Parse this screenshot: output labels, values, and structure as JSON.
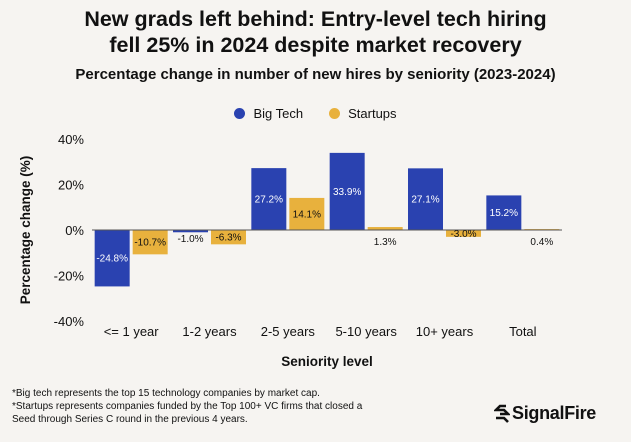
{
  "title_line1": "New grads left behind: Entry-level tech hiring",
  "title_line2": "fell 25% in 2024 despite market recovery",
  "chart_data": {
    "type": "bar",
    "title": "Percentage change in number of new hires by seniority (2023-2024)",
    "xlabel": "Seniority level",
    "ylabel": "Percentage change (%)",
    "ylim": [
      -40,
      40
    ],
    "yticks": [
      40,
      20,
      0,
      -20,
      -40
    ],
    "ytick_labels": [
      "40%",
      "20%",
      "0%",
      "-20%",
      "-40%"
    ],
    "categories": [
      "<= 1 year",
      "1-2 years",
      "2-5 years",
      "5-10 years",
      "10+ years",
      "Total"
    ],
    "series": [
      {
        "name": "Big Tech",
        "color": "#2a42b0",
        "values": [
          -24.8,
          -1.0,
          27.2,
          33.9,
          27.1,
          15.2
        ],
        "labels": [
          "-24.8%",
          "-1.0%",
          "27.2%",
          "33.9%",
          "27.1%",
          "15.2%"
        ]
      },
      {
        "name": "Startups",
        "color": "#e8b13d",
        "values": [
          -10.7,
          -6.3,
          14.1,
          1.3,
          -3.0,
          0.4
        ],
        "labels": [
          "-10.7%",
          "-6.3%",
          "14.1%",
          "1.3%",
          "-3.0%",
          "0.4%"
        ]
      }
    ],
    "grid": false,
    "legend_position": "top-center"
  },
  "footnotes": [
    "*Big tech represents the top 15 technology companies by market cap.",
    "*Startups represents companies funded by the Top 100+ VC firms that closed a",
    "Seed through Series C round in the previous 4 years."
  ],
  "logo_text": "SignalFire"
}
